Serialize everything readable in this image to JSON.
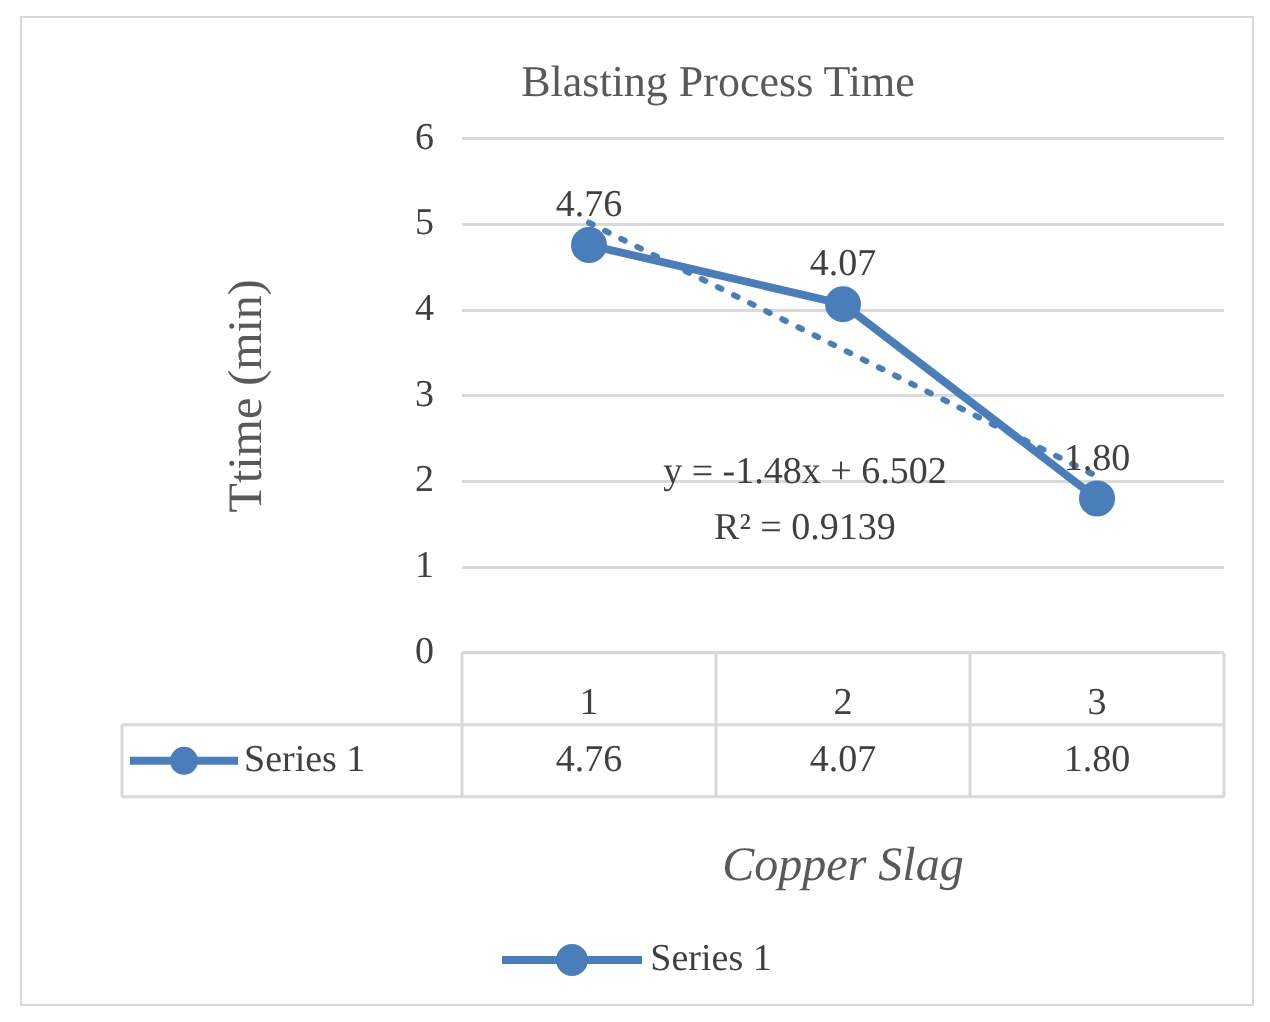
{
  "chart_data": {
    "type": "line",
    "title": "Blasting Process Time",
    "xlabel": "Copper Slag",
    "ylabel": "Ttime (min)",
    "categories": [
      "1",
      "2",
      "3"
    ],
    "series": [
      {
        "name": "Series 1",
        "color": "#4a7ebb",
        "values": [
          4.76,
          4.07,
          1.8
        ],
        "value_labels": [
          "4.76",
          "4.07",
          "1.80"
        ],
        "marker": "circle"
      },
      {
        "type": "line",
        "color": "#4a7ebb",
        "values": [
          5.02,
          3.54,
          2.06
        ],
        "line_style": "dotted",
        "marker": "none"
      }
    ],
    "ylim": [
      0,
      6
    ],
    "yticks": [
      0,
      1,
      2,
      3,
      4,
      5,
      6
    ],
    "grid": "y",
    "legend": "bottom",
    "annotations": [
      "y = -1.48x + 6.502",
      "R² = 0.9139"
    ]
  }
}
